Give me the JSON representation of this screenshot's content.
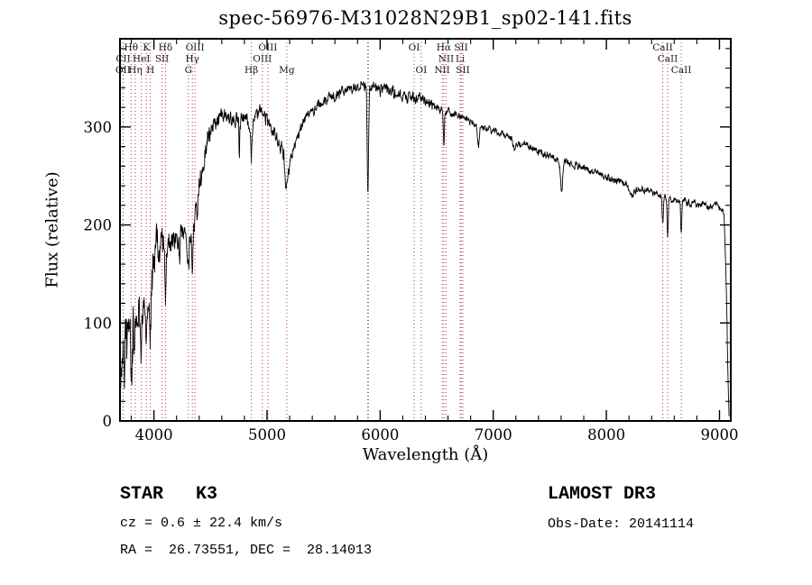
{
  "title": "spec-56976-M31028N29B1_sp02-141.fits",
  "footer": {
    "class_label": "STAR   K3",
    "survey": "LAMOST DR3",
    "cz": "cz = 0.6 ± 22.4 km/s",
    "obs_date": "Obs-Date: 20141114",
    "coords": "RA =  26.73551, DEC =  28.14013"
  },
  "chart_data": {
    "type": "line",
    "title": "spec-56976-M31028N29B1_sp02-141.fits",
    "xlabel": "Wavelength (Å)",
    "ylabel": "Flux (relative)",
    "xlim": [
      3700,
      9100
    ],
    "ylim": [
      0,
      390
    ],
    "xticks": [
      4000,
      5000,
      6000,
      7000,
      8000,
      9000
    ],
    "yticks": [
      0,
      100,
      200,
      300
    ],
    "x_minor_step": 200,
    "y_minor_step": 20,
    "line_color": "#000000",
    "frame_color": "#000000",
    "spectral_line_color": "#b03434",
    "spectral_label_color": "#151515",
    "noise_seed": 20141114,
    "noise_ar": 0.55,
    "noise_regions": [
      {
        "until": 3900,
        "amp": 40
      },
      {
        "until": 4150,
        "amp": 26
      },
      {
        "until": 4500,
        "amp": 16
      },
      {
        "until": 5200,
        "amp": 11
      },
      {
        "until": 6500,
        "amp": 8
      },
      {
        "until": 9100,
        "amp": 5
      }
    ],
    "envelope": [
      [
        3700,
        18
      ],
      [
        3712,
        55
      ],
      [
        3725,
        85
      ],
      [
        3740,
        62
      ],
      [
        3755,
        95
      ],
      [
        3770,
        72
      ],
      [
        3790,
        92
      ],
      [
        3810,
        80
      ],
      [
        3830,
        105
      ],
      [
        3850,
        92
      ],
      [
        3870,
        122
      ],
      [
        3890,
        112
      ],
      [
        3910,
        105
      ],
      [
        3930,
        115
      ],
      [
        3950,
        125
      ],
      [
        3975,
        138
      ],
      [
        4000,
        158
      ],
      [
        4030,
        175
      ],
      [
        4060,
        182
      ],
      [
        4090,
        176
      ],
      [
        4120,
        180
      ],
      [
        4160,
        184
      ],
      [
        4200,
        182
      ],
      [
        4240,
        192
      ],
      [
        4280,
        190
      ],
      [
        4320,
        193
      ],
      [
        4360,
        205
      ],
      [
        4400,
        240
      ],
      [
        4440,
        265
      ],
      [
        4480,
        287
      ],
      [
        4520,
        300
      ],
      [
        4560,
        307
      ],
      [
        4600,
        311
      ],
      [
        4650,
        308
      ],
      [
        4700,
        311
      ],
      [
        4750,
        306
      ],
      [
        4800,
        308
      ],
      [
        4840,
        301
      ],
      [
        4880,
        306
      ],
      [
        4920,
        314
      ],
      [
        4960,
        315
      ],
      [
        5000,
        310
      ],
      [
        5040,
        301
      ],
      [
        5080,
        291
      ],
      [
        5120,
        281
      ],
      [
        5160,
        269
      ],
      [
        5190,
        263
      ],
      [
        5220,
        272
      ],
      [
        5260,
        288
      ],
      [
        5300,
        301
      ],
      [
        5340,
        309
      ],
      [
        5380,
        315
      ],
      [
        5430,
        320
      ],
      [
        5480,
        325
      ],
      [
        5540,
        329
      ],
      [
        5600,
        332
      ],
      [
        5660,
        335
      ],
      [
        5720,
        337
      ],
      [
        5780,
        339
      ],
      [
        5840,
        341
      ],
      [
        5900,
        342
      ],
      [
        5960,
        340
      ],
      [
        6020,
        339
      ],
      [
        6100,
        336
      ],
      [
        6200,
        332
      ],
      [
        6300,
        329
      ],
      [
        6400,
        325
      ],
      [
        6500,
        320
      ],
      [
        6600,
        315
      ],
      [
        6700,
        311
      ],
      [
        6800,
        306
      ],
      [
        6900,
        300
      ],
      [
        7000,
        296
      ],
      [
        7100,
        291
      ],
      [
        7200,
        286
      ],
      [
        7300,
        281
      ],
      [
        7400,
        276
      ],
      [
        7500,
        271
      ],
      [
        7600,
        266
      ],
      [
        7700,
        262
      ],
      [
        7800,
        258
      ],
      [
        7900,
        253
      ],
      [
        8000,
        249
      ],
      [
        8100,
        245
      ],
      [
        8200,
        241
      ],
      [
        8300,
        237
      ],
      [
        8400,
        233
      ],
      [
        8500,
        229
      ],
      [
        8600,
        226
      ],
      [
        8700,
        224
      ],
      [
        8800,
        221
      ],
      [
        8900,
        219
      ],
      [
        8960,
        221
      ],
      [
        9010,
        217
      ],
      [
        9040,
        210
      ],
      [
        9060,
        140
      ],
      [
        9075,
        45
      ],
      [
        9085,
        5
      ]
    ],
    "absorption_features": [
      {
        "wl": 3797,
        "depth": 25,
        "sigma": 5
      },
      {
        "wl": 3835,
        "depth": 25,
        "sigma": 5
      },
      {
        "wl": 3889,
        "depth": 30,
        "sigma": 5
      },
      {
        "wl": 3933,
        "depth": 50,
        "sigma": 6
      },
      {
        "wl": 3969,
        "depth": 45,
        "sigma": 6
      },
      {
        "wl": 4102,
        "depth": 45,
        "sigma": 5
      },
      {
        "wl": 4227,
        "depth": 20,
        "sigma": 5
      },
      {
        "wl": 4305,
        "depth": 25,
        "sigma": 9
      },
      {
        "wl": 4340,
        "depth": 40,
        "sigma": 5
      },
      {
        "wl": 4383,
        "depth": 25,
        "sigma": 5
      },
      {
        "wl": 4755,
        "depth": 35,
        "sigma": 3
      },
      {
        "wl": 4861,
        "depth": 40,
        "sigma": 5
      },
      {
        "wl": 5172,
        "depth": 32,
        "sigma": 11
      },
      {
        "wl": 5892,
        "depth": 112,
        "sigma": 6
      },
      {
        "wl": 6563,
        "depth": 35,
        "sigma": 5
      },
      {
        "wl": 6870,
        "depth": 22,
        "sigma": 8
      },
      {
        "wl": 7190,
        "depth": 12,
        "sigma": 12
      },
      {
        "wl": 7605,
        "depth": 28,
        "sigma": 10
      },
      {
        "wl": 8227,
        "depth": 12,
        "sigma": 18
      },
      {
        "wl": 8498,
        "depth": 30,
        "sigma": 5
      },
      {
        "wl": 8542,
        "depth": 40,
        "sigma": 5
      },
      {
        "wl": 8662,
        "depth": 35,
        "sigma": 5
      }
    ],
    "spectral_lines": [
      {
        "label": "OII",
        "wl": 3727,
        "row": 2
      },
      {
        "label": "CII",
        "wl": 3729,
        "row": 1
      },
      {
        "label": "Hθ",
        "wl": 3798,
        "row": 0
      },
      {
        "label": "Hη",
        "wl": 3835,
        "row": 2
      },
      {
        "label": "HeI",
        "wl": 3889,
        "row": 1
      },
      {
        "label": "K",
        "wl": 3933,
        "row": 0
      },
      {
        "label": "H",
        "wl": 3969,
        "row": 2
      },
      {
        "label": "SII",
        "wl": 4072,
        "row": 1
      },
      {
        "label": "Hδ",
        "wl": 4102,
        "row": 0
      },
      {
        "label": "G",
        "wl": 4305,
        "row": 2
      },
      {
        "label": "Hγ",
        "wl": 4340,
        "row": 1
      },
      {
        "label": "OIII",
        "wl": 4363,
        "row": 0
      },
      {
        "label": "Hβ",
        "wl": 4861,
        "row": 2
      },
      {
        "label": "OIII",
        "wl": 4959,
        "row": 1
      },
      {
        "label": "OIII",
        "wl": 5007,
        "row": 0
      },
      {
        "label": "Mg",
        "wl": 5175,
        "row": 2
      },
      {
        "label": "",
        "wl": 5890,
        "row": -1
      },
      {
        "label": "",
        "wl": 5896,
        "row": -1
      },
      {
        "label": "OI",
        "wl": 6300,
        "row": 0
      },
      {
        "label": "OI",
        "wl": 6363,
        "row": 2
      },
      {
        "label": "NII",
        "wl": 6548,
        "row": 2
      },
      {
        "label": "Hα",
        "wl": 6563,
        "row": 0
      },
      {
        "label": "NII",
        "wl": 6583,
        "row": 1
      },
      {
        "label": "Li",
        "wl": 6708,
        "row": 1
      },
      {
        "label": "SII",
        "wl": 6716,
        "row": 0
      },
      {
        "label": "SII",
        "wl": 6731,
        "row": 2
      },
      {
        "label": "CaII",
        "wl": 8498,
        "row": 0
      },
      {
        "label": "CaII",
        "wl": 8542,
        "row": 1
      },
      {
        "label": "CaII",
        "wl": 8662,
        "row": 2
      }
    ]
  }
}
